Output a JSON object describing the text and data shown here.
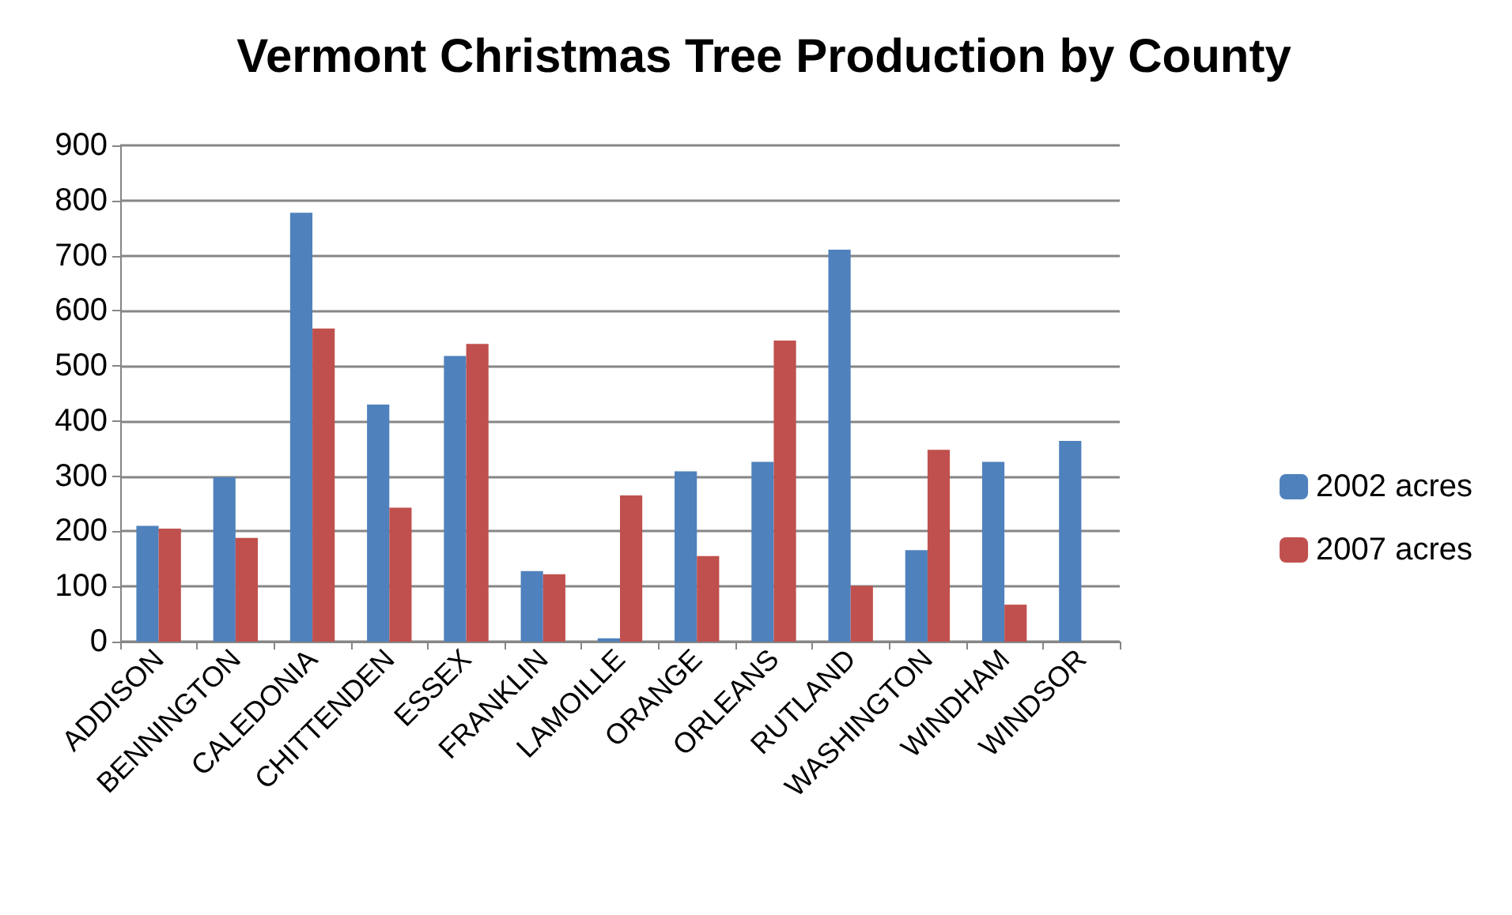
{
  "chart_data": {
    "type": "bar",
    "title": "Vermont Christmas Tree Production by County",
    "categories": [
      "ADDISON",
      "BENNINGTON",
      "CALEDONIA",
      "CHITTENDEN",
      "ESSEX",
      "FRANKLIN",
      "LAMOILLE",
      "ORANGE",
      "ORLEANS",
      "RUTLAND",
      "WASHINGTON",
      "WINDHAM",
      "WINDSOR"
    ],
    "series": [
      {
        "name": "2002 acres",
        "color": "#4f81bd",
        "values": [
          210,
          298,
          778,
          430,
          518,
          128,
          6,
          309,
          326,
          711,
          166,
          326,
          364
        ]
      },
      {
        "name": "2007 acres",
        "color": "#c0504d",
        "values": [
          205,
          188,
          568,
          243,
          540,
          122,
          265,
          155,
          546,
          101,
          348,
          67,
          null
        ]
      }
    ],
    "ylim": [
      0,
      900
    ],
    "yticks": [
      0,
      100,
      200,
      300,
      400,
      500,
      600,
      700,
      800,
      900
    ],
    "grid": "y",
    "legend": "right"
  }
}
